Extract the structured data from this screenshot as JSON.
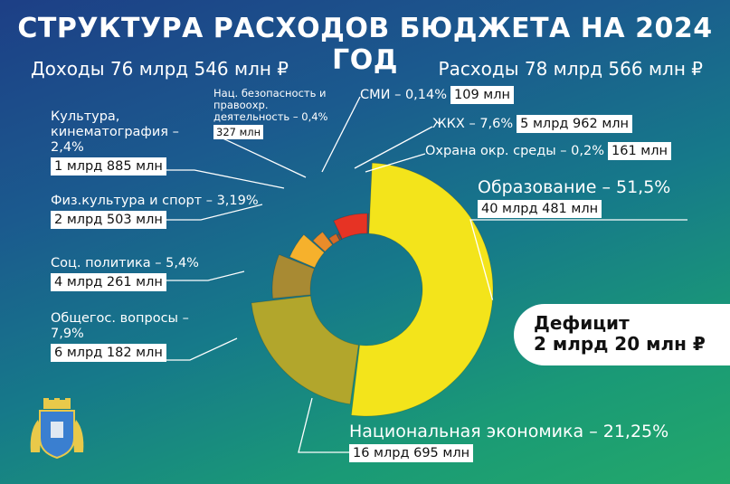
{
  "header": {
    "title": "СТРУКТУРА РАСХОДОВ БЮДЖЕТА НА 2024 ГОД",
    "income": "Доходы 76 млрд 546 млн ₽",
    "expenses": "Расходы 78 млрд 566 млн ₽"
  },
  "deficit": {
    "label": "Дефицит",
    "value": "2 млрд 20 млн ₽"
  },
  "chart_data": {
    "type": "pie",
    "title": "СТРУКТУРА РАСХОДОВ БЮДЖЕТА НА 2024 ГОД",
    "slices": [
      {
        "label": "Образование – 51,5%",
        "value": 51.5,
        "amount": "40 млрд 481 млн",
        "color": "#f3e41b"
      },
      {
        "label": "Национальная экономика – 21,25%",
        "value": 21.25,
        "amount": "16 млрд 695 млн",
        "color": "#b2a62c"
      },
      {
        "label": "Общегос. вопросы – 7,9%",
        "value": 7.9,
        "amount": "6 млрд 182 млн",
        "color": "#a88a33"
      },
      {
        "label": "Соц. политика – 5,4%",
        "value": 5.4,
        "amount": "4 млрд 261 млн",
        "color": "#f6b12c"
      },
      {
        "label": "Физ.культура и спорт – 3,19%",
        "value": 3.19,
        "amount": "2 млрд 503 млн",
        "color": "#e98c2a"
      },
      {
        "label": "Культура, кинематография – 2,4%",
        "value": 2.4,
        "amount": "1 млрд 885 млн",
        "color": "#d66a27"
      },
      {
        "label": "Нац. безопасность и правоохр. деятельность – 0,4%",
        "value": 0.4,
        "amount": "327 млн",
        "color": "#c24a22"
      },
      {
        "label": "СМИ – 0,14%",
        "value": 0.14,
        "amount": "109 млн",
        "color": "#e84b2b"
      },
      {
        "label": "ЖКХ – 7,6%",
        "value": 7.6,
        "amount": "5 млрд 962 млн",
        "color": "#e63324"
      },
      {
        "label": "Охрана окр. среды – 0,2%",
        "value": 0.2,
        "amount": "161 млн",
        "color": "#d0301e"
      }
    ]
  }
}
